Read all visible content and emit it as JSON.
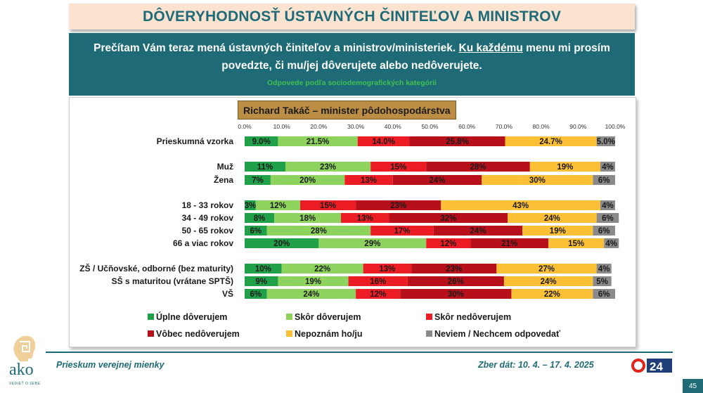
{
  "header": {
    "title": "DÔVERYHODNOSŤ ÚSTAVNÝCH ČINITEĽOV A MINISTROV"
  },
  "question": {
    "part1": "Prečítam Vám teraz mená ústavných činiteľov a ministrov/ministeriek. ",
    "underlined": "Ku každému",
    "part2": " menu mi prosím povedzte, či mu/jej dôverujete alebo nedôverujete.",
    "subtitle": "Odpovede podľa sociodemografických kategórií"
  },
  "footer": {
    "left": "Prieskum verejnej mienky",
    "right": "Zber dát: 10. 4. – 17. 4. 2025",
    "page": "45",
    "logo_text": "ako",
    "logo_tagline": "VEDIEŤ O SEBE",
    "tv_text": "24"
  },
  "colors": {
    "teal": "#1e6b77",
    "title_bg": "#fbe3cf",
    "chart_title_bg": "#bc8e45"
  },
  "chart_data": {
    "type": "bar",
    "orientation": "horizontal",
    "stacked": "100%",
    "title": "Richard Takáč – minister pôdohospodárstva",
    "x_ticks": [
      "0.0%",
      "10.0%",
      "20.0%",
      "30.0%",
      "40.0%",
      "50.0%",
      "60.0%",
      "70.0%",
      "80.0%",
      "90.0%",
      "100.0%"
    ],
    "xlim": [
      0,
      100
    ],
    "categories": [
      "Prieskumná vzorka",
      "Muž",
      "Žena",
      "18 - 33 rokov",
      "34 - 49 rokov",
      "50 - 65 rokov",
      "66 a viac rokov",
      "ZŠ / Učňovské, odborné (bez maturity)",
      "SŠ s maturitou (vrátane SPTŠ)",
      "VŠ"
    ],
    "groups": [
      [
        0
      ],
      [
        1,
        2
      ],
      [
        3,
        4,
        5,
        6
      ],
      [
        7,
        8,
        9
      ]
    ],
    "series": [
      {
        "name": "Úplne dôverujem",
        "color": "#21a04a",
        "values": [
          9.0,
          11,
          7,
          3,
          8,
          6,
          20,
          10,
          9,
          6
        ],
        "labels": [
          "9.0%",
          "11%",
          "7%",
          "3%",
          "8%",
          "6%",
          "20%",
          "10%",
          "9%",
          "6%"
        ]
      },
      {
        "name": "Skôr dôverujem",
        "color": "#8ed35e",
        "values": [
          21.5,
          23,
          20,
          12,
          18,
          28,
          29,
          22,
          19,
          24
        ],
        "labels": [
          "21.5%",
          "23%",
          "20%",
          "12%",
          "18%",
          "28%",
          "29%",
          "22%",
          "19%",
          "24%"
        ]
      },
      {
        "name": "Skôr nedôverujem",
        "color": "#ec1c24",
        "values": [
          14.0,
          15,
          13,
          15,
          13,
          17,
          12,
          13,
          16,
          12
        ],
        "labels": [
          "14.0%",
          "15%",
          "13%",
          "15%",
          "13%",
          "17%",
          "12%",
          "13%",
          "16%",
          "12%"
        ]
      },
      {
        "name": "Vôbec nedôverujem",
        "color": "#b8101a",
        "values": [
          25.8,
          28,
          24,
          23,
          32,
          24,
          21,
          23,
          26,
          30
        ],
        "labels": [
          "25.8%",
          "28%",
          "24%",
          "23%",
          "32%",
          "24%",
          "21%",
          "23%",
          "26%",
          "30%"
        ]
      },
      {
        "name": "Nepoznám ho/ju",
        "color": "#fbc035",
        "values": [
          24.7,
          19,
          30,
          43,
          24,
          19,
          15,
          27,
          24,
          22
        ],
        "labels": [
          "24.7%",
          "19%",
          "30%",
          "43%",
          "24%",
          "19%",
          "15%",
          "27%",
          "24%",
          "22%"
        ]
      },
      {
        "name": "Neviem / Nechcem odpovedať",
        "color": "#8a8a8a",
        "values": [
          5.0,
          4,
          6,
          4,
          6,
          6,
          4,
          4,
          5,
          6
        ],
        "labels": [
          "5.0%",
          "4%",
          "6%",
          "4%",
          "6%",
          "6%",
          "4%",
          "4%",
          "5%",
          "6%"
        ]
      }
    ],
    "legend_position": "bottom"
  }
}
